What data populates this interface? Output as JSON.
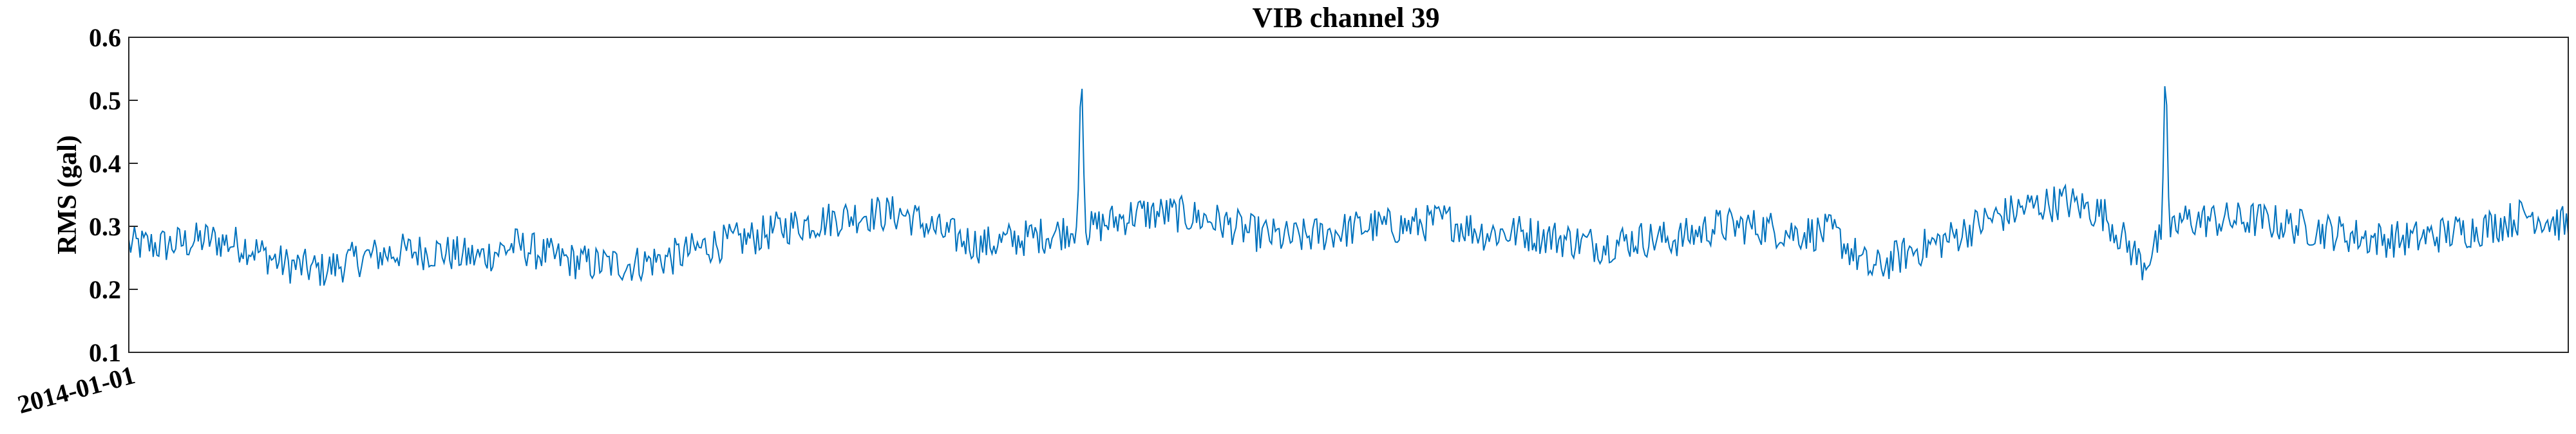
{
  "chart_data": {
    "type": "line",
    "title": "VIB channel 39",
    "xlabel": "",
    "ylabel": "RMS (gal)",
    "ylim": [
      0.1,
      0.6
    ],
    "yticks": [
      "0.1",
      "0.2",
      "0.3",
      "0.4",
      "0.5",
      "0.6"
    ],
    "xticks": [
      "2014-01-01"
    ],
    "grid": false,
    "line_color": "#0072BD",
    "series": [
      {
        "x": [
          0,
          20,
          40,
          60,
          80,
          100,
          120,
          140,
          160,
          180,
          200,
          220,
          240,
          260,
          280,
          300,
          320,
          340,
          360,
          380,
          400,
          420,
          440,
          460,
          480,
          490,
          492,
          494,
          500,
          520,
          540,
          560,
          580,
          600,
          620,
          640,
          660,
          680,
          700,
          720,
          740,
          760,
          780,
          800,
          820,
          840,
          860,
          880,
          900,
          920,
          940,
          960,
          980,
          1000,
          1020,
          1040,
          1050,
          1052,
          1054,
          1060,
          1080,
          1100,
          1120,
          1140,
          1160,
          1180,
          1200,
          1220,
          1240,
          1260
        ],
        "values": [
          0.27,
          0.27,
          0.28,
          0.27,
          0.24,
          0.23,
          0.25,
          0.26,
          0.26,
          0.25,
          0.27,
          0.25,
          0.24,
          0.24,
          0.25,
          0.27,
          0.28,
          0.3,
          0.31,
          0.32,
          0.32,
          0.29,
          0.27,
          0.28,
          0.29,
          0.3,
          0.57,
          0.29,
          0.3,
          0.32,
          0.32,
          0.31,
          0.29,
          0.28,
          0.29,
          0.3,
          0.3,
          0.31,
          0.29,
          0.29,
          0.28,
          0.27,
          0.28,
          0.28,
          0.3,
          0.3,
          0.29,
          0.29,
          0.23,
          0.26,
          0.28,
          0.31,
          0.33,
          0.34,
          0.32,
          0.24,
          0.28,
          0.58,
          0.28,
          0.31,
          0.31,
          0.31,
          0.3,
          0.29,
          0.28,
          0.28,
          0.29,
          0.3,
          0.32,
          0.3
        ]
      }
    ]
  }
}
